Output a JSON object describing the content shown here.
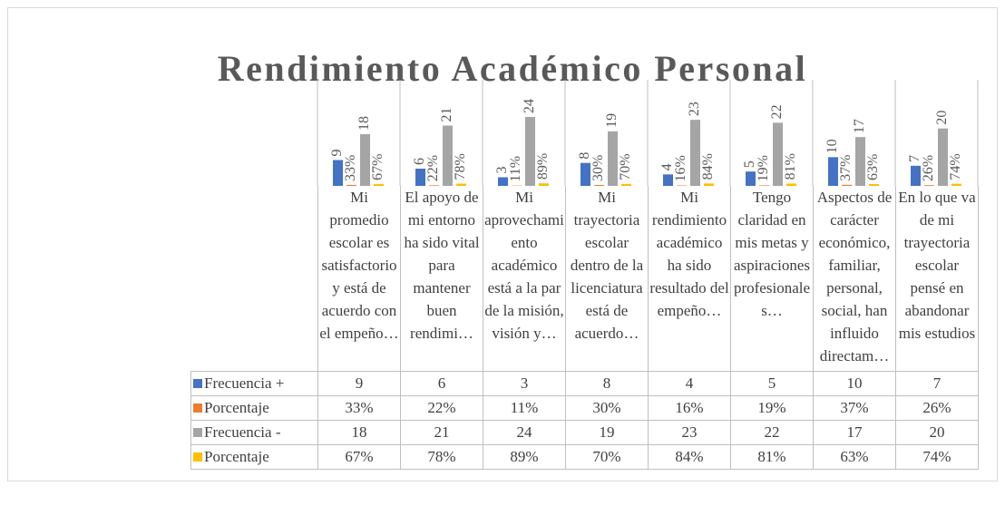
{
  "chart_data": {
    "type": "bar",
    "title": "Rendimiento Académico Personal",
    "categories": [
      "Mi promedio escolar es satisfactorio y está de acuerdo con el empeño…",
      "El apoyo de mi entorno ha sido vital para mantener buen rendimi…",
      "Mi aprovechamiento académico está a la par de la misión, visión y…",
      "Mi trayectoria escolar dentro de la licenciatura está de acuerdo…",
      "Mi rendimiento académico ha sido resultado del empeño…",
      "Tengo claridad en mis metas y aspiraciones profesionales…",
      "Aspectos de carácter económico, familiar, personal, social, han influido directam…",
      "En lo que va de mi trayectoria escolar pensé en abandonar mis estudios"
    ],
    "series": [
      {
        "name": "Frecuencia +",
        "color": "#4472c4",
        "values": [
          9,
          6,
          3,
          8,
          4,
          5,
          10,
          7
        ]
      },
      {
        "name": "Porcentaje",
        "color": "#ed7d31",
        "values": [
          0.33,
          0.22,
          0.11,
          0.3,
          0.16,
          0.19,
          0.37,
          0.26
        ],
        "value_labels": [
          "33%",
          "22%",
          "11%",
          "30%",
          "16%",
          "19%",
          "37%",
          "26%"
        ]
      },
      {
        "name": "Frecuencia -",
        "color": "#a5a5a5",
        "values": [
          18,
          21,
          24,
          19,
          23,
          22,
          17,
          20
        ]
      },
      {
        "name": "Porcentaje",
        "color": "#ffc000",
        "values": [
          0.67,
          0.78,
          0.89,
          0.7,
          0.84,
          0.81,
          0.63,
          0.74
        ],
        "value_labels": [
          "67%",
          "78%",
          "89%",
          "70%",
          "84%",
          "81%",
          "63%",
          "74%"
        ]
      }
    ],
    "ylim": [
      0,
      30
    ],
    "data_table": true
  }
}
